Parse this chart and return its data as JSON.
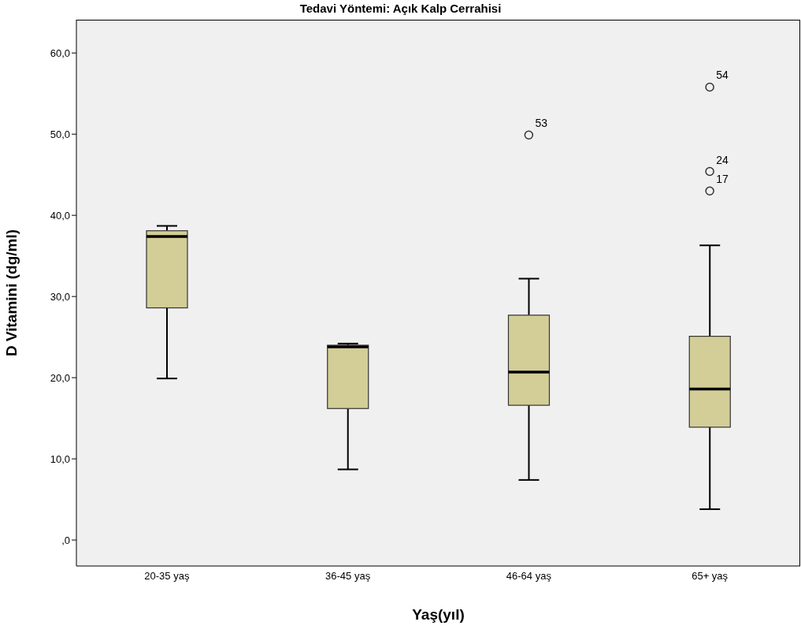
{
  "chart_data": {
    "type": "box",
    "title": "Tedavi Yöntemi: Açık Kalp Cerrahisi",
    "xlabel": "Yaş(yıl)",
    "ylabel": "D Vitamini (dg/ml)",
    "categories": [
      "20-35 yaş",
      "36-45 yaş",
      "46-64 yaş",
      "65+ yaş"
    ],
    "color": "#d3ce97",
    "boxes": [
      {
        "low": 19.9,
        "q1": 28.6,
        "median": 37.4,
        "q3": 38.1,
        "high": 38.7
      },
      {
        "low": 8.7,
        "q1": 16.2,
        "median": 23.8,
        "q3": 24.0,
        "high": 24.2
      },
      {
        "low": 7.4,
        "q1": 16.6,
        "median": 20.7,
        "q3": 27.7,
        "high": 32.2
      },
      {
        "low": 3.8,
        "q1": 13.9,
        "median": 18.6,
        "q3": 25.1,
        "high": 36.3
      }
    ],
    "series": [
      {
        "type": "scatter",
        "color": "#333333",
        "x": [
          "46-64 yaş",
          "65+ yaş",
          "65+ yaş",
          "65+ yaş"
        ],
        "values": [
          49.9,
          55.8,
          45.4,
          43.0
        ]
      }
    ],
    "annotations": [
      {
        "text": "53",
        "x": "46-64 yaş",
        "y": 49.9
      },
      {
        "text": "54",
        "x": "65+ yaş",
        "y": 55.8
      },
      {
        "text": "24",
        "x": "65+ yaş",
        "y": 45.4
      },
      {
        "text": "17",
        "x": "65+ yaş",
        "y": 43.0
      }
    ],
    "ylim": [
      -3.2,
      64.1
    ],
    "yticks": [
      {
        "value": 0,
        "label": ",0"
      },
      {
        "value": 10,
        "label": "10,0"
      },
      {
        "value": 20,
        "label": "20,0"
      },
      {
        "value": 30,
        "label": "30,0"
      },
      {
        "value": 40,
        "label": "40,0"
      },
      {
        "value": 50,
        "label": "50,0"
      },
      {
        "value": 60,
        "label": "60,0"
      }
    ]
  }
}
